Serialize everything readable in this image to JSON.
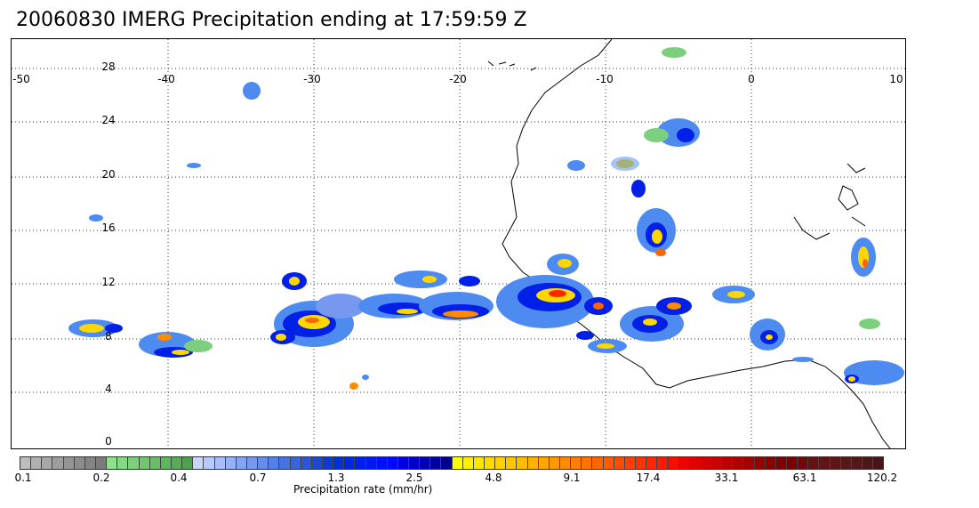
{
  "title": "20060830 IMERG Precipitation ending at 17:59:59 Z",
  "map": {
    "longitude_ticks": [
      "-50",
      "-40",
      "-30",
      "-20",
      "-10",
      "0",
      "10"
    ],
    "latitude_ticks": [
      "28",
      "24",
      "20",
      "16",
      "12",
      "8",
      "4",
      "0"
    ],
    "lon_range": [
      -50,
      10
    ],
    "lat_range": [
      -1,
      29
    ],
    "grid": "dotted"
  },
  "colorbar": {
    "label": "Precipitation rate (mm/hr)",
    "tick_labels": [
      "0.1",
      "0.2",
      "0.4",
      "0.7",
      "1.3",
      "2.5",
      "4.8",
      "9.1",
      "17.4",
      "33.1",
      "63.1",
      "120.2"
    ],
    "colors": [
      "#bdbdbd",
      "#b0b0b0",
      "#a7a7a7",
      "#9e9e9e",
      "#959595",
      "#8c8c8c",
      "#848484",
      "#7b7b7b",
      "#8fe08f",
      "#86d886",
      "#7ccf7c",
      "#72c672",
      "#68bd68",
      "#5fb45f",
      "#56ab56",
      "#4da34d",
      "#c9d6ff",
      "#b8caff",
      "#a8bdfc",
      "#97b1f8",
      "#86a4f4",
      "#7698f0",
      "#668cec",
      "#577fe8",
      "#4672e3",
      "#3865dd",
      "#2b57d6",
      "#1e49cf",
      "#0f3ad0",
      "#0030d8",
      "#0028e0",
      "#0020e8",
      "#0018f0",
      "#0010f8",
      "#0008ff",
      "#0000e0",
      "#0000c8",
      "#0000b4",
      "#0000a0",
      "#00008c",
      "#ffff00",
      "#fff000",
      "#ffe600",
      "#ffdb00",
      "#ffd100",
      "#ffc600",
      "#ffbc00",
      "#ffb100",
      "#ffa600",
      "#ff9900",
      "#ff8c00",
      "#ff7f00",
      "#ff7300",
      "#ff6600",
      "#ff5a00",
      "#ff4d00",
      "#ff4000",
      "#ff3300",
      "#ff2600",
      "#ff1a00",
      "#f50f00",
      "#eb0500",
      "#e00000",
      "#d40000",
      "#c80000",
      "#bc0000",
      "#b00000",
      "#a40000",
      "#980000",
      "#8c0000",
      "#800000",
      "#780000",
      "#6e0a0a",
      "#681010",
      "#621414",
      "#5c1616",
      "#561818",
      "#501818",
      "#4a1818",
      "#441616"
    ]
  }
}
